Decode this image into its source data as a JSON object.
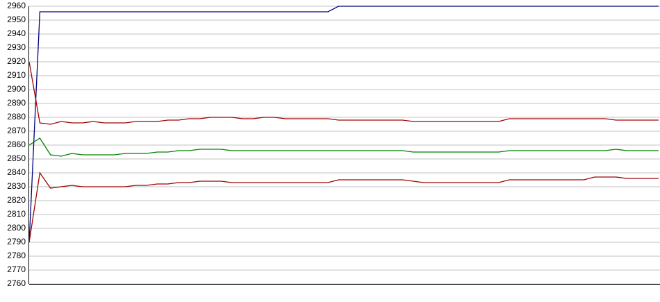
{
  "chart_data": {
    "type": "line",
    "categories": [
      null,
      null,
      null,
      null,
      null,
      null,
      null,
      null,
      null,
      null,
      null,
      null,
      null,
      null,
      null,
      null,
      null,
      null,
      null,
      null,
      null,
      null,
      null,
      null,
      null,
      null,
      null,
      null,
      null,
      null,
      null,
      null,
      null,
      null,
      null,
      null,
      null,
      null,
      null,
      null,
      null,
      null,
      null,
      null,
      null,
      null,
      null,
      null,
      null,
      null,
      null,
      null,
      null,
      null,
      null,
      null,
      null,
      null,
      null,
      null
    ],
    "series": [
      {
        "color": "#000080",
        "values": [
          2790,
          2956,
          2956,
          2956,
          2956,
          2956,
          2956,
          2956,
          2956,
          2956,
          2956,
          2956,
          2956,
          2956,
          2956,
          2956,
          2956,
          2956,
          2956,
          2956,
          2956,
          2956,
          2956,
          2956,
          2956,
          2956,
          2956,
          2956,
          2956,
          2960,
          2960,
          2960,
          2960,
          2960,
          2960,
          2960,
          2960,
          2960,
          2960,
          2960,
          2960,
          2960,
          2960,
          2960,
          2960,
          2960,
          2960,
          2960,
          2960,
          2960,
          2960,
          2960,
          2960,
          2960,
          2960,
          2960,
          2960,
          2960,
          2960,
          2960
        ]
      },
      {
        "color": "#a00000",
        "values": [
          2920,
          2876,
          2875,
          2877,
          2876,
          2876,
          2877,
          2876,
          2876,
          2876,
          2877,
          2877,
          2877,
          2878,
          2878,
          2879,
          2879,
          2880,
          2880,
          2880,
          2879,
          2879,
          2880,
          2880,
          2879,
          2879,
          2879,
          2879,
          2879,
          2878,
          2878,
          2878,
          2878,
          2878,
          2878,
          2878,
          2877,
          2877,
          2877,
          2877,
          2877,
          2877,
          2877,
          2877,
          2877,
          2879,
          2879,
          2879,
          2879,
          2879,
          2879,
          2879,
          2879,
          2879,
          2879,
          2878,
          2878,
          2878,
          2878,
          2878
        ]
      },
      {
        "color": "#008000",
        "values": [
          2860,
          2865,
          2853,
          2852,
          2854,
          2853,
          2853,
          2853,
          2853,
          2854,
          2854,
          2854,
          2855,
          2855,
          2856,
          2856,
          2857,
          2857,
          2857,
          2856,
          2856,
          2856,
          2856,
          2856,
          2856,
          2856,
          2856,
          2856,
          2856,
          2856,
          2856,
          2856,
          2856,
          2856,
          2856,
          2856,
          2855,
          2855,
          2855,
          2855,
          2855,
          2855,
          2855,
          2855,
          2855,
          2856,
          2856,
          2856,
          2856,
          2856,
          2856,
          2856,
          2856,
          2856,
          2856,
          2857,
          2856,
          2856,
          2856,
          2856
        ]
      },
      {
        "color": "#a00000",
        "values": [
          2790,
          2840,
          2829,
          2830,
          2831,
          2830,
          2830,
          2830,
          2830,
          2830,
          2831,
          2831,
          2832,
          2832,
          2833,
          2833,
          2834,
          2834,
          2834,
          2833,
          2833,
          2833,
          2833,
          2833,
          2833,
          2833,
          2833,
          2833,
          2833,
          2835,
          2835,
          2835,
          2835,
          2835,
          2835,
          2835,
          2834,
          2833,
          2833,
          2833,
          2833,
          2833,
          2833,
          2833,
          2833,
          2835,
          2835,
          2835,
          2835,
          2835,
          2835,
          2835,
          2835,
          2837,
          2837,
          2837,
          2836,
          2836,
          2836,
          2836
        ]
      }
    ],
    "ylim": [
      2760,
      2960
    ],
    "yticks": [
      2760,
      2770,
      2780,
      2790,
      2800,
      2810,
      2820,
      2830,
      2840,
      2850,
      2860,
      2870,
      2880,
      2890,
      2900,
      2910,
      2920,
      2930,
      2940,
      2950,
      2960
    ],
    "grid": true
  }
}
